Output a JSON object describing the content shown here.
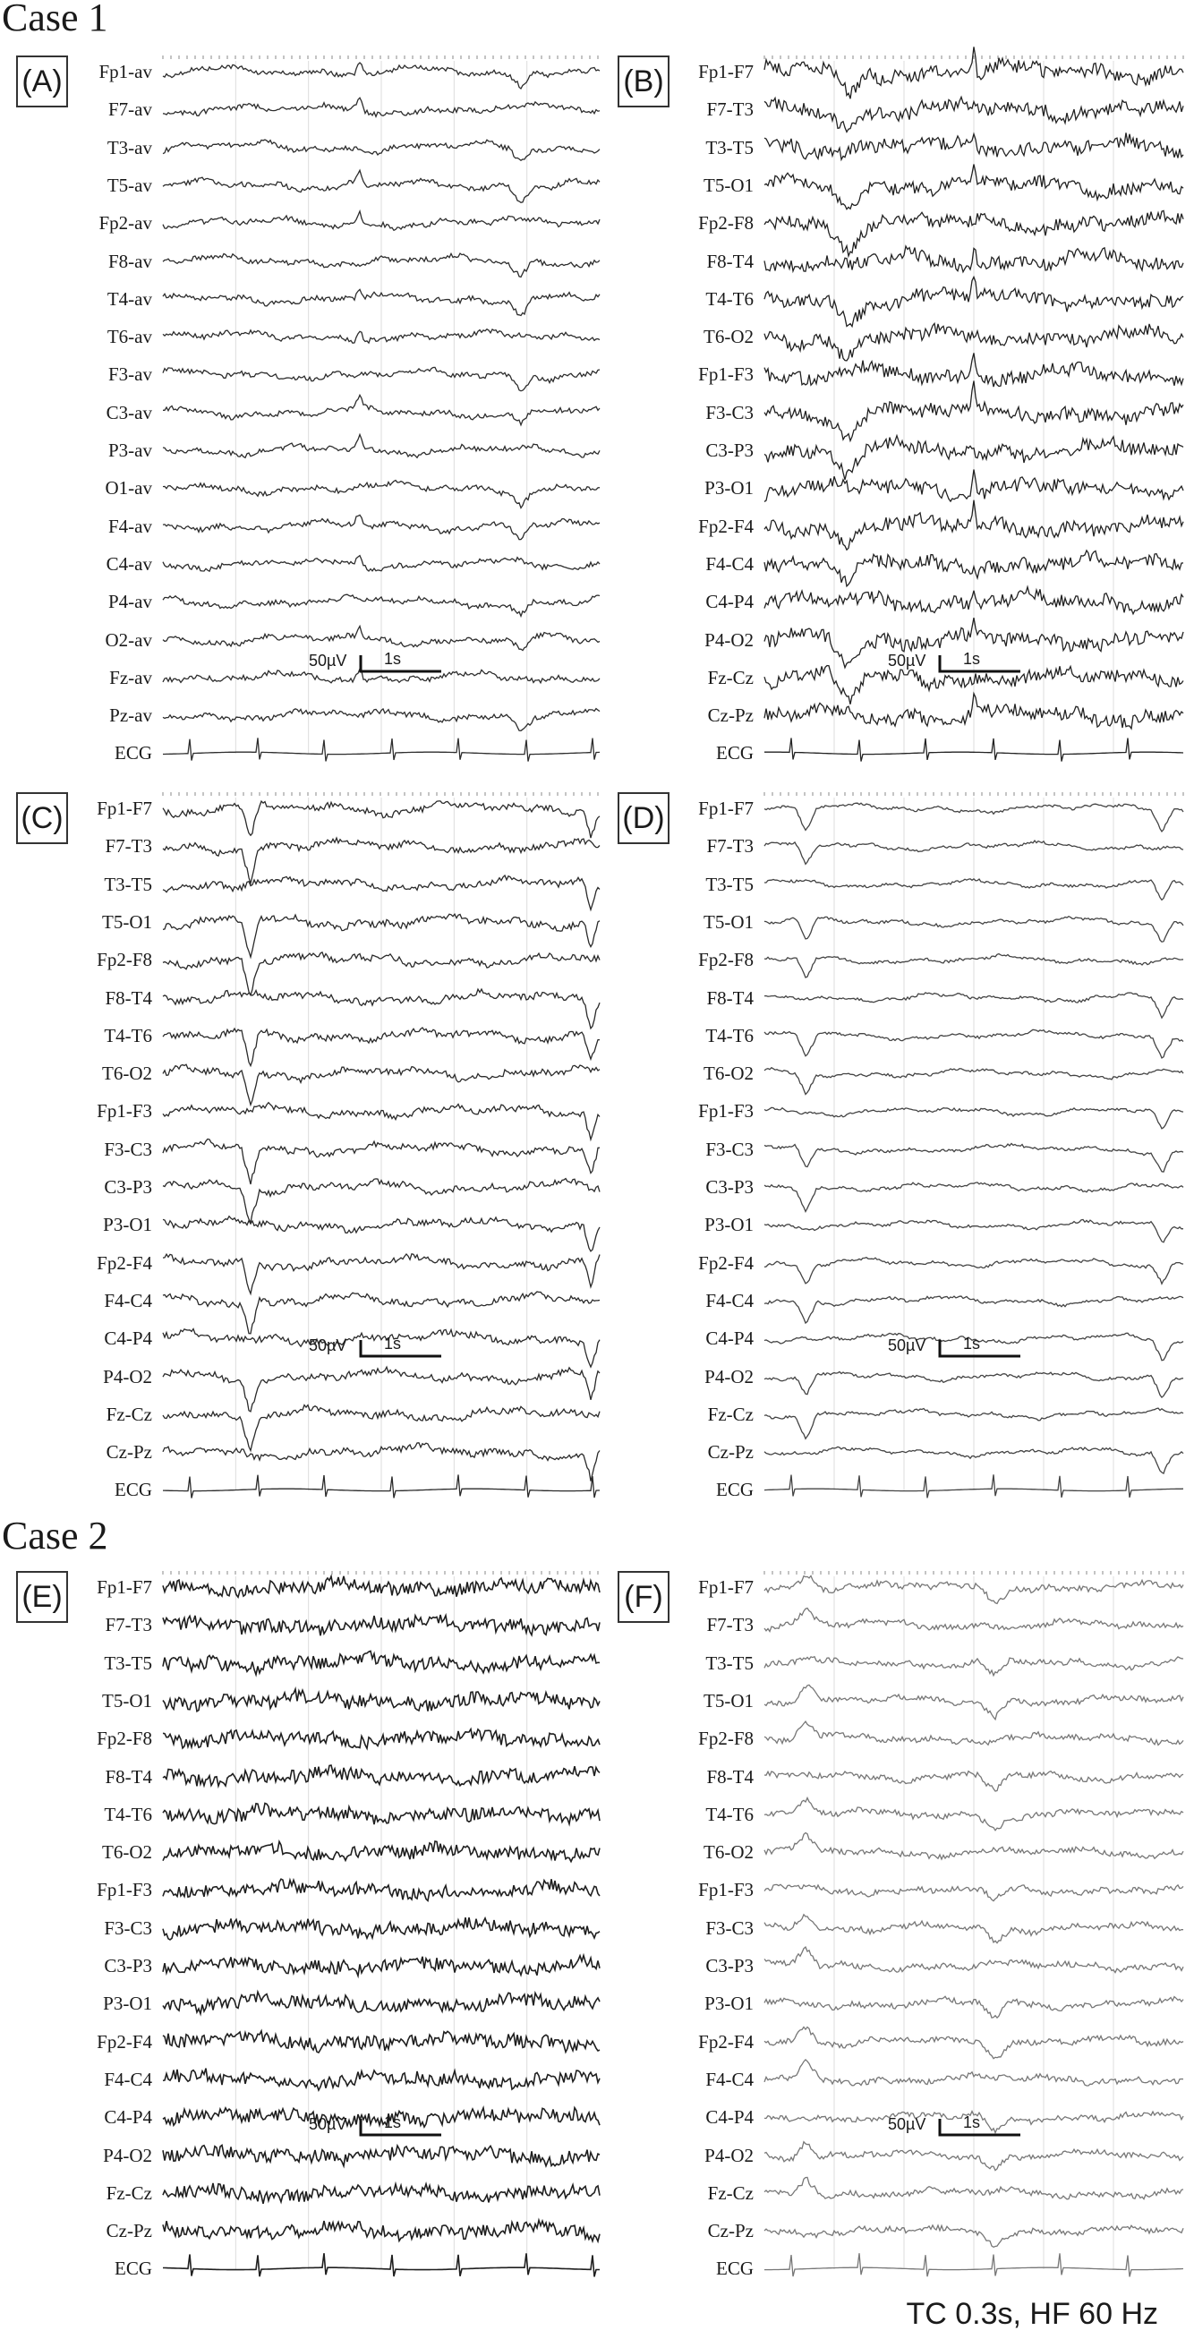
{
  "case_titles": [
    "Case 1",
    "Case 2"
  ],
  "panels": [
    {
      "id": "A",
      "label": "(A)",
      "case": 1,
      "ink": "#2d2d2d",
      "channels": [
        "Fp1-av",
        "F7-av",
        "T3-av",
        "T5-av",
        "Fp2-av",
        "F8-av",
        "T4-av",
        "T6-av",
        "F3-av",
        "C3-av",
        "P3-av",
        "O1-av",
        "F4-av",
        "C4-av",
        "P4-av",
        "O2-av",
        "Fz-av",
        "Pz-av",
        "ECG"
      ],
      "scale": {
        "amplitude": "50µV",
        "time": "1s"
      }
    },
    {
      "id": "B",
      "label": "(B)",
      "case": 1,
      "ink": "#222222",
      "channels": [
        "Fp1-F7",
        "F7-T3",
        "T3-T5",
        "T5-O1",
        "Fp2-F8",
        "F8-T4",
        "T4-T6",
        "T6-O2",
        "Fp1-F3",
        "F3-C3",
        "C3-P3",
        "P3-O1",
        "Fp2-F4",
        "F4-C4",
        "C4-P4",
        "P4-O2",
        "Fz-Cz",
        "Cz-Pz",
        "ECG"
      ],
      "scale": {
        "amplitude": "50µV",
        "time": "1s"
      }
    },
    {
      "id": "C",
      "label": "(C)",
      "case": 1,
      "ink": "#2a2a2a",
      "channels": [
        "Fp1-F7",
        "F7-T3",
        "T3-T5",
        "T5-O1",
        "Fp2-F8",
        "F8-T4",
        "T4-T6",
        "T6-O2",
        "Fp1-F3",
        "F3-C3",
        "C3-P3",
        "P3-O1",
        "Fp2-F4",
        "F4-C4",
        "C4-P4",
        "P4-O2",
        "Fz-Cz",
        "Cz-Pz",
        "ECG"
      ],
      "scale": {
        "amplitude": "50µV",
        "time": "1s"
      }
    },
    {
      "id": "D",
      "label": "(D)",
      "case": 1,
      "ink": "#444444",
      "channels": [
        "Fp1-F7",
        "F7-T3",
        "T3-T5",
        "T5-O1",
        "Fp2-F8",
        "F8-T4",
        "T4-T6",
        "T6-O2",
        "Fp1-F3",
        "F3-C3",
        "C3-P3",
        "P3-O1",
        "Fp2-F4",
        "F4-C4",
        "C4-P4",
        "P4-O2",
        "Fz-Cz",
        "Cz-Pz",
        "ECG"
      ],
      "scale": {
        "amplitude": "50µV",
        "time": "1s"
      }
    },
    {
      "id": "E",
      "label": "(E)",
      "case": 2,
      "ink": "#1f1f1f",
      "channels": [
        "Fp1-F7",
        "F7-T3",
        "T3-T5",
        "T5-O1",
        "Fp2-F8",
        "F8-T4",
        "T4-T6",
        "T6-O2",
        "Fp1-F3",
        "F3-C3",
        "C3-P3",
        "P3-O1",
        "Fp2-F4",
        "F4-C4",
        "C4-P4",
        "P4-O2",
        "Fz-Cz",
        "Cz-Pz",
        "ECG"
      ],
      "scale": {
        "amplitude": "50µV",
        "time": "1s"
      }
    },
    {
      "id": "F",
      "label": "(F)",
      "case": 2,
      "ink": "#777777",
      "channels": [
        "Fp1-F7",
        "F7-T3",
        "T3-T5",
        "T5-O1",
        "Fp2-F8",
        "F8-T4",
        "T4-T6",
        "T6-O2",
        "Fp1-F3",
        "F3-C3",
        "C3-P3",
        "P3-O1",
        "Fp2-F4",
        "F4-C4",
        "C4-P4",
        "P4-O2",
        "Fz-Cz",
        "Cz-Pz",
        "ECG"
      ],
      "scale": {
        "amplitude": "50µV",
        "time": "1s"
      }
    }
  ],
  "footer": "TC 0.3s, HF 60 Hz"
}
